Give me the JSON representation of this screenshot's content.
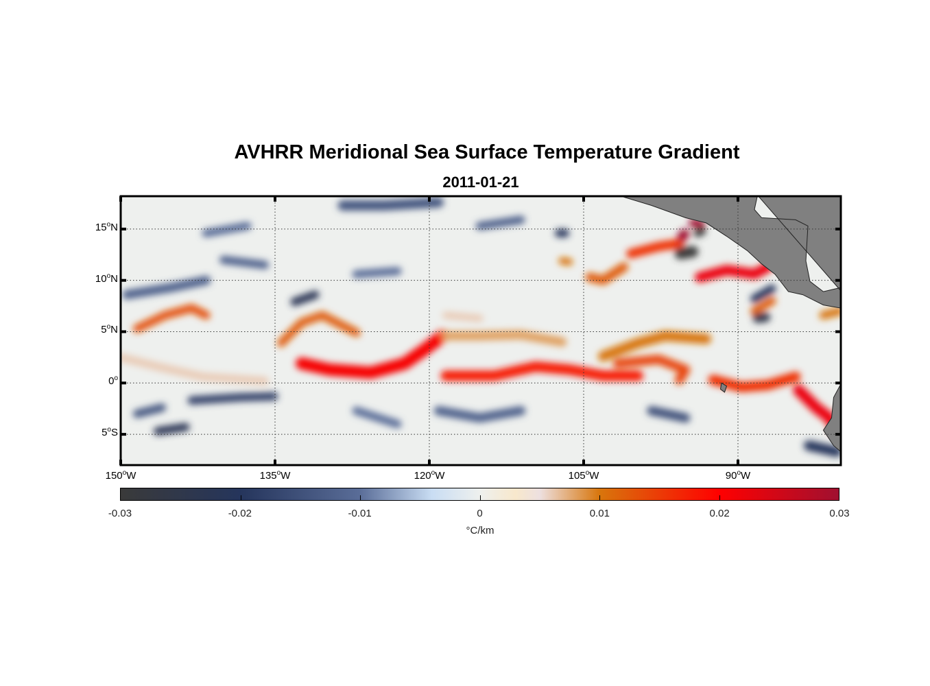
{
  "chart_data": {
    "type": "heatmap",
    "title": "AVHRR Meridional Sea Surface Temperature Gradient",
    "subtitle": "2011-01-21",
    "xlim": [
      -150,
      -80
    ],
    "ylim": [
      -8,
      18.2
    ],
    "grid": true,
    "lat_ticks": [
      {
        "value": 15,
        "num": "15",
        "hem": "N"
      },
      {
        "value": 10,
        "num": "10",
        "hem": "N"
      },
      {
        "value": 5,
        "num": "5",
        "hem": "N"
      },
      {
        "value": 0,
        "num": "0",
        "hem": ""
      },
      {
        "value": -5,
        "num": "5",
        "hem": "S"
      }
    ],
    "lon_ticks": [
      {
        "value": -150,
        "num": "150",
        "hem": "W"
      },
      {
        "value": -135,
        "num": "135",
        "hem": "W"
      },
      {
        "value": -120,
        "num": "120",
        "hem": "W"
      },
      {
        "value": -105,
        "num": "105",
        "hem": "W"
      },
      {
        "value": -90,
        "num": "90",
        "hem": "W"
      }
    ],
    "colorbar": {
      "clim": [
        -0.03,
        0.03
      ],
      "ticks": [
        "-0.03",
        "-0.02",
        "-0.01",
        "0",
        "0.01",
        "0.02",
        "0.03"
      ],
      "tick_values": [
        -0.03,
        -0.02,
        -0.01,
        0,
        0.01,
        0.02,
        0.03
      ],
      "label": "°C/km",
      "colors": [
        {
          "v": -0.03,
          "c": "#3a3a3a"
        },
        {
          "v": -0.02,
          "c": "#25355c"
        },
        {
          "v": -0.01,
          "c": "#5a6d98"
        },
        {
          "v": -0.004,
          "c": "#c9ddf3"
        },
        {
          "v": 0,
          "c": "#eef0ee"
        },
        {
          "v": 0.003,
          "c": "#f8e8cc"
        },
        {
          "v": 0.005,
          "c": "#ede0e0"
        },
        {
          "v": 0.01,
          "c": "#d8760c"
        },
        {
          "v": 0.02,
          "c": "#ff0000"
        },
        {
          "v": 0.03,
          "c": "#a01030"
        }
      ]
    },
    "land_color": "#808080",
    "ocean_background_value": 0,
    "features": [
      {
        "value": 0.021,
        "w": 1.2,
        "pts": [
          [
            -132.4,
            1.9
          ],
          [
            -129.7,
            1.3
          ],
          [
            -125.7,
            1.0
          ],
          [
            -122.4,
            1.9
          ],
          [
            -120.4,
            3.3
          ],
          [
            -118.7,
            4.6
          ]
        ]
      },
      {
        "value": 0.018,
        "w": 1.0,
        "pts": [
          [
            -118.4,
            0.7
          ],
          [
            -113.7,
            0.7
          ],
          [
            -109.7,
            1.6
          ],
          [
            -106.4,
            1.3
          ],
          [
            -103.1,
            0.7
          ],
          [
            -99.7,
            0.7
          ]
        ]
      },
      {
        "value": 0.016,
        "w": 1.0,
        "pts": [
          [
            -92.4,
            0.3
          ],
          [
            -89.7,
            -0.4
          ],
          [
            -87.1,
            -0.2
          ],
          [
            -84.4,
            0.6
          ]
        ]
      },
      {
        "value": 0.022,
        "w": 1.1,
        "pts": [
          [
            -84.1,
            -0.7
          ],
          [
            -82.4,
            -2.4
          ],
          [
            -81.1,
            -3.4
          ],
          [
            -80.6,
            -4.4
          ]
        ]
      },
      {
        "value": 0.012,
        "w": 0.8,
        "pts": [
          [
            -134.4,
            3.9
          ],
          [
            -132.4,
            5.9
          ],
          [
            -130.4,
            6.6
          ],
          [
            -127.1,
            4.9
          ]
        ]
      },
      {
        "value": 0.013,
        "w": 0.8,
        "pts": [
          [
            -148.4,
            5.3
          ],
          [
            -145.7,
            6.6
          ],
          [
            -143.1,
            7.3
          ],
          [
            -141.7,
            6.6
          ]
        ]
      },
      {
        "value": 0.01,
        "w": 1.0,
        "pts": [
          [
            -103.1,
            2.6
          ],
          [
            -99.7,
            3.9
          ],
          [
            -97.1,
            4.6
          ],
          [
            -93.1,
            4.3
          ]
        ]
      },
      {
        "value": 0.014,
        "w": 0.9,
        "pts": [
          [
            -101.7,
            1.9
          ],
          [
            -97.7,
            2.3
          ],
          [
            -95.1,
            1.3
          ],
          [
            -95.7,
            0.3
          ]
        ]
      },
      {
        "value": 0.012,
        "w": 0.9,
        "pts": [
          [
            -104.4,
            10.3
          ],
          [
            -103.1,
            10.0
          ],
          [
            -101.1,
            11.3
          ]
        ]
      },
      {
        "value": 0.016,
        "w": 0.9,
        "pts": [
          [
            -100.4,
            12.6
          ],
          [
            -97.7,
            13.3
          ],
          [
            -95.7,
            13.6
          ]
        ]
      },
      {
        "value": 0.03,
        "w": 1.0,
        "pts": [
          [
            -95.4,
            14.3
          ],
          [
            -95.2,
            14.5
          ]
        ]
      },
      {
        "value": 0.03,
        "w": 0.8,
        "pts": [
          [
            -94.4,
            15.6
          ],
          [
            -93.6,
            15.5
          ]
        ]
      },
      {
        "value": 0.022,
        "w": 1.0,
        "pts": [
          [
            -93.7,
            10.3
          ],
          [
            -91.1,
            11.0
          ],
          [
            -88.4,
            10.6
          ],
          [
            -87.1,
            11.3
          ]
        ]
      },
      {
        "value": 0.012,
        "w": 0.8,
        "pts": [
          [
            -88.4,
            7.0
          ],
          [
            -86.7,
            8.0
          ]
        ]
      },
      {
        "value": 0.01,
        "w": 0.7,
        "pts": [
          [
            -107.1,
            11.9
          ],
          [
            -106.4,
            11.8
          ]
        ]
      },
      {
        "value": 0.006,
        "w": 0.7,
        "pts": [
          [
            -118.4,
            6.6
          ],
          [
            -115.1,
            6.3
          ]
        ]
      },
      {
        "value": 0.01,
        "w": 0.8,
        "pts": [
          [
            -81.7,
            6.6
          ],
          [
            -80.1,
            7.0
          ]
        ]
      },
      {
        "value": 0.008,
        "w": 0.9,
        "pts": [
          [
            -118.4,
            4.6
          ],
          [
            -115.1,
            4.6
          ],
          [
            -111.1,
            4.7
          ],
          [
            -107.1,
            4.0
          ]
        ]
      },
      {
        "value": 0.006,
        "w": 0.8,
        "pts": [
          [
            -150,
            2.5
          ],
          [
            -146,
            1.5
          ],
          [
            -142,
            0.6
          ],
          [
            -136,
            0.2
          ]
        ]
      },
      {
        "value": -0.012,
        "w": 0.9,
        "pts": [
          [
            -149.4,
            8.6
          ],
          [
            -145.1,
            9.3
          ],
          [
            -141.7,
            10.0
          ]
        ]
      },
      {
        "value": -0.022,
        "w": 0.8,
        "pts": [
          [
            -146.4,
            -4.7
          ],
          [
            -143.7,
            -4.3
          ]
        ]
      },
      {
        "value": -0.018,
        "w": 0.8,
        "pts": [
          [
            -143.1,
            -1.7
          ],
          [
            -138.4,
            -1.4
          ],
          [
            -135.1,
            -1.3
          ]
        ]
      },
      {
        "value": -0.022,
        "w": 0.8,
        "pts": [
          [
            -133.1,
            7.9
          ],
          [
            -131.1,
            8.6
          ]
        ]
      },
      {
        "value": -0.014,
        "w": 1.0,
        "pts": [
          [
            -128.4,
            17.3
          ],
          [
            -124.4,
            17.3
          ],
          [
            -119.1,
            17.6
          ]
        ]
      },
      {
        "value": -0.012,
        "w": 0.8,
        "pts": [
          [
            -115.1,
            15.3
          ],
          [
            -111.1,
            15.9
          ]
        ]
      },
      {
        "value": -0.02,
        "w": 0.8,
        "pts": [
          [
            -107.4,
            14.6
          ],
          [
            -106.8,
            14.6
          ]
        ]
      },
      {
        "value": -0.03,
        "w": 1.1,
        "pts": [
          [
            -95.6,
            12.6
          ],
          [
            -94.4,
            12.8
          ]
        ]
      },
      {
        "value": -0.03,
        "w": 0.8,
        "pts": [
          [
            -93.9,
            14.6
          ],
          [
            -93.5,
            14.8
          ]
        ]
      },
      {
        "value": -0.025,
        "w": 0.9,
        "pts": [
          [
            -88.1,
            6.3
          ],
          [
            -87.3,
            6.4
          ]
        ]
      },
      {
        "value": -0.02,
        "w": 0.8,
        "pts": [
          [
            -88.4,
            8.2
          ],
          [
            -86.7,
            9.2
          ]
        ]
      },
      {
        "value": -0.012,
        "w": 0.9,
        "pts": [
          [
            -119.1,
            -2.7
          ],
          [
            -115.1,
            -3.4
          ],
          [
            -111.1,
            -2.7
          ]
        ]
      },
      {
        "value": -0.015,
        "w": 0.9,
        "pts": [
          [
            -98.4,
            -2.7
          ],
          [
            -95.1,
            -3.4
          ]
        ]
      },
      {
        "value": -0.02,
        "w": 1.0,
        "pts": [
          [
            -83.1,
            -6.1
          ],
          [
            -80.4,
            -6.7
          ]
        ]
      },
      {
        "value": -0.01,
        "w": 0.8,
        "pts": [
          [
            -127.1,
            -2.7
          ],
          [
            -123.1,
            -4.0
          ]
        ]
      },
      {
        "value": -0.01,
        "w": 0.8,
        "pts": [
          [
            -127.1,
            10.6
          ],
          [
            -123.1,
            10.9
          ]
        ]
      },
      {
        "value": -0.01,
        "w": 0.8,
        "pts": [
          [
            -141.7,
            14.6
          ],
          [
            -137.7,
            15.3
          ]
        ]
      },
      {
        "value": -0.014,
        "w": 0.8,
        "pts": [
          [
            -148.4,
            -3.0
          ],
          [
            -146.0,
            -2.4
          ]
        ]
      },
      {
        "value": -0.012,
        "w": 0.8,
        "pts": [
          [
            -140.0,
            12.0
          ],
          [
            -136.0,
            11.5
          ]
        ]
      }
    ],
    "land": [
      [
        [
          -101.7,
          18.3
        ],
        [
          -98.4,
          17.3
        ],
        [
          -95.1,
          16.1
        ],
        [
          -93.1,
          15.6
        ],
        [
          -91.1,
          14.3
        ],
        [
          -89.1,
          12.9
        ],
        [
          -87.7,
          11.6
        ],
        [
          -86.4,
          10.6
        ],
        [
          -85.1,
          8.9
        ],
        [
          -83.7,
          8.6
        ],
        [
          -81.7,
          7.6
        ],
        [
          -80,
          7.3
        ],
        [
          -80,
          9.3
        ],
        [
          -81.7,
          8.9
        ],
        [
          -83,
          9.9
        ],
        [
          -83.4,
          11.9
        ],
        [
          -83.2,
          15.3
        ],
        [
          -84.4,
          15.9
        ],
        [
          -87.7,
          16.1
        ],
        [
          -88.4,
          16.9
        ],
        [
          -88.1,
          18.3
        ]
      ],
      [
        [
          -80,
          -0.1
        ],
        [
          -80.7,
          -1.4
        ],
        [
          -80.9,
          -3.4
        ],
        [
          -81.7,
          -4.6
        ],
        [
          -80.7,
          -6.1
        ],
        [
          -80,
          -6.7
        ]
      ],
      [
        [
          -91.6,
          0.0
        ],
        [
          -91.1,
          -0.3
        ],
        [
          -91.3,
          -0.9
        ],
        [
          -91.7,
          -0.6
        ]
      ]
    ]
  }
}
